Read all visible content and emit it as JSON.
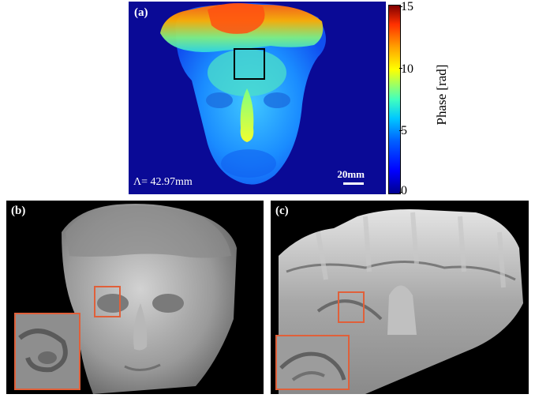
{
  "panel_a": {
    "label": "(a)",
    "annotation": "Λ= 42.97mm",
    "scale_bar": "20mm",
    "colorbar": {
      "label": "Phase [rad]",
      "ticks": [
        "15",
        "10",
        "5",
        "0"
      ],
      "range": [
        0,
        15
      ],
      "colormap": "jet"
    }
  },
  "panel_b": {
    "label": "(b)"
  },
  "panel_c": {
    "label": "(c)"
  },
  "colors": {
    "highlight_box_a": "#000000",
    "highlight_box_bc": "#e0603a",
    "background_a": "#0a0a96",
    "background_bc": "#000000"
  }
}
